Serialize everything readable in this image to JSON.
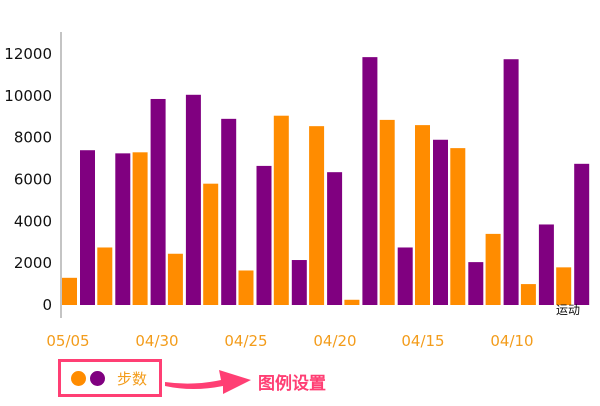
{
  "chart_data": {
    "type": "bar",
    "title": "",
    "xlabel": "",
    "ylabel": "",
    "ylim": [
      0,
      12000
    ],
    "yticks": [
      0,
      2000,
      4000,
      6000,
      8000,
      10000,
      12000
    ],
    "x_tick_labels": [
      "05/05",
      "04/30",
      "04/25",
      "04/20",
      "04/15",
      "04/10"
    ],
    "corner_label": "运动",
    "legend": {
      "label": "步数",
      "placement": "bottom-left"
    },
    "colors": {
      "orange": "#ff8c00",
      "purple": "#800080",
      "annotation": "#ff3f74"
    },
    "series_orange": [
      1300,
      2750,
      7300,
      2450,
      5800,
      1650,
      9050,
      8550,
      250,
      8850,
      8600,
      7500,
      3400,
      1000,
      1800
    ],
    "series_purple": [
      7400,
      7250,
      9850,
      10050,
      8900,
      6650,
      2150,
      6350,
      11850,
      2750,
      7900,
      2050,
      11750,
      3850,
      6750
    ]
  },
  "annotation": {
    "text": "图例设置",
    "target": "legend"
  }
}
